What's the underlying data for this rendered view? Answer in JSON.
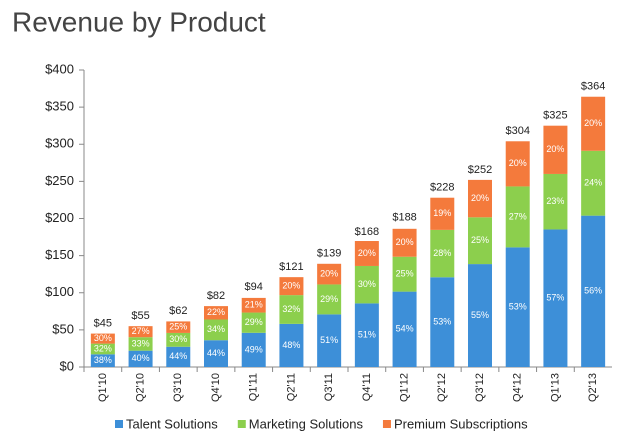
{
  "chart_data": {
    "type": "stacked_bar_percent",
    "title": "Revenue by Product",
    "categories": [
      "Q1'10",
      "Q2'10",
      "Q3'10",
      "Q4'10",
      "Q1'11",
      "Q2'11",
      "Q3'11",
      "Q4'11",
      "Q1'12",
      "Q2'12",
      "Q3'12",
      "Q4'12",
      "Q1'13",
      "Q2'13"
    ],
    "totals": {
      "values": [
        45,
        55,
        62,
        82,
        94,
        121,
        139,
        168,
        188,
        228,
        252,
        304,
        325,
        364
      ],
      "value_labels": [
        "$45",
        "$55",
        "$62",
        "$82",
        "$94",
        "$121",
        "$139",
        "$168",
        "$188",
        "$228",
        "$252",
        "$304",
        "$325",
        "$364"
      ]
    },
    "series": [
      {
        "name": "Talent Solutions",
        "color": "#3d8fd8",
        "values": [
          38,
          40,
          44,
          44,
          49,
          48,
          51,
          51,
          54,
          53,
          55,
          53,
          57,
          56
        ],
        "value_labels": [
          "38%",
          "40%",
          "44%",
          "44%",
          "49%",
          "48%",
          "51%",
          "51%",
          "54%",
          "53%",
          "55%",
          "53%",
          "57%",
          "56%"
        ]
      },
      {
        "name": "Marketing Solutions",
        "color": "#8ccf4d",
        "values": [
          32,
          33,
          30,
          34,
          29,
          32,
          29,
          30,
          25,
          28,
          25,
          27,
          23,
          24
        ],
        "value_labels": [
          "32%",
          "33%",
          "30%",
          "34%",
          "29%",
          "32%",
          "29%",
          "30%",
          "25%",
          "28%",
          "25%",
          "27%",
          "23%",
          "24%"
        ]
      },
      {
        "name": "Premium Subscriptions",
        "color": "#f47a3c",
        "values": [
          30,
          27,
          25,
          22,
          21,
          20,
          20,
          20,
          20,
          19,
          20,
          20,
          20,
          20
        ],
        "value_labels": [
          "30%",
          "27%",
          "25%",
          "22%",
          "21%",
          "20%",
          "20%",
          "20%",
          "20%",
          "19%",
          "20%",
          "20%",
          "20%",
          "20%"
        ]
      }
    ],
    "ylim": [
      0,
      400
    ],
    "yticks": [
      {
        "value": 0,
        "label": "$0"
      },
      {
        "value": 50,
        "label": "$50"
      },
      {
        "value": 100,
        "label": "$100"
      },
      {
        "value": 150,
        "label": "$150"
      },
      {
        "value": 200,
        "label": "$200"
      },
      {
        "value": 250,
        "label": "$250"
      },
      {
        "value": 300,
        "label": "$300"
      },
      {
        "value": 350,
        "label": "$350"
      },
      {
        "value": 400,
        "label": "$400"
      }
    ]
  }
}
